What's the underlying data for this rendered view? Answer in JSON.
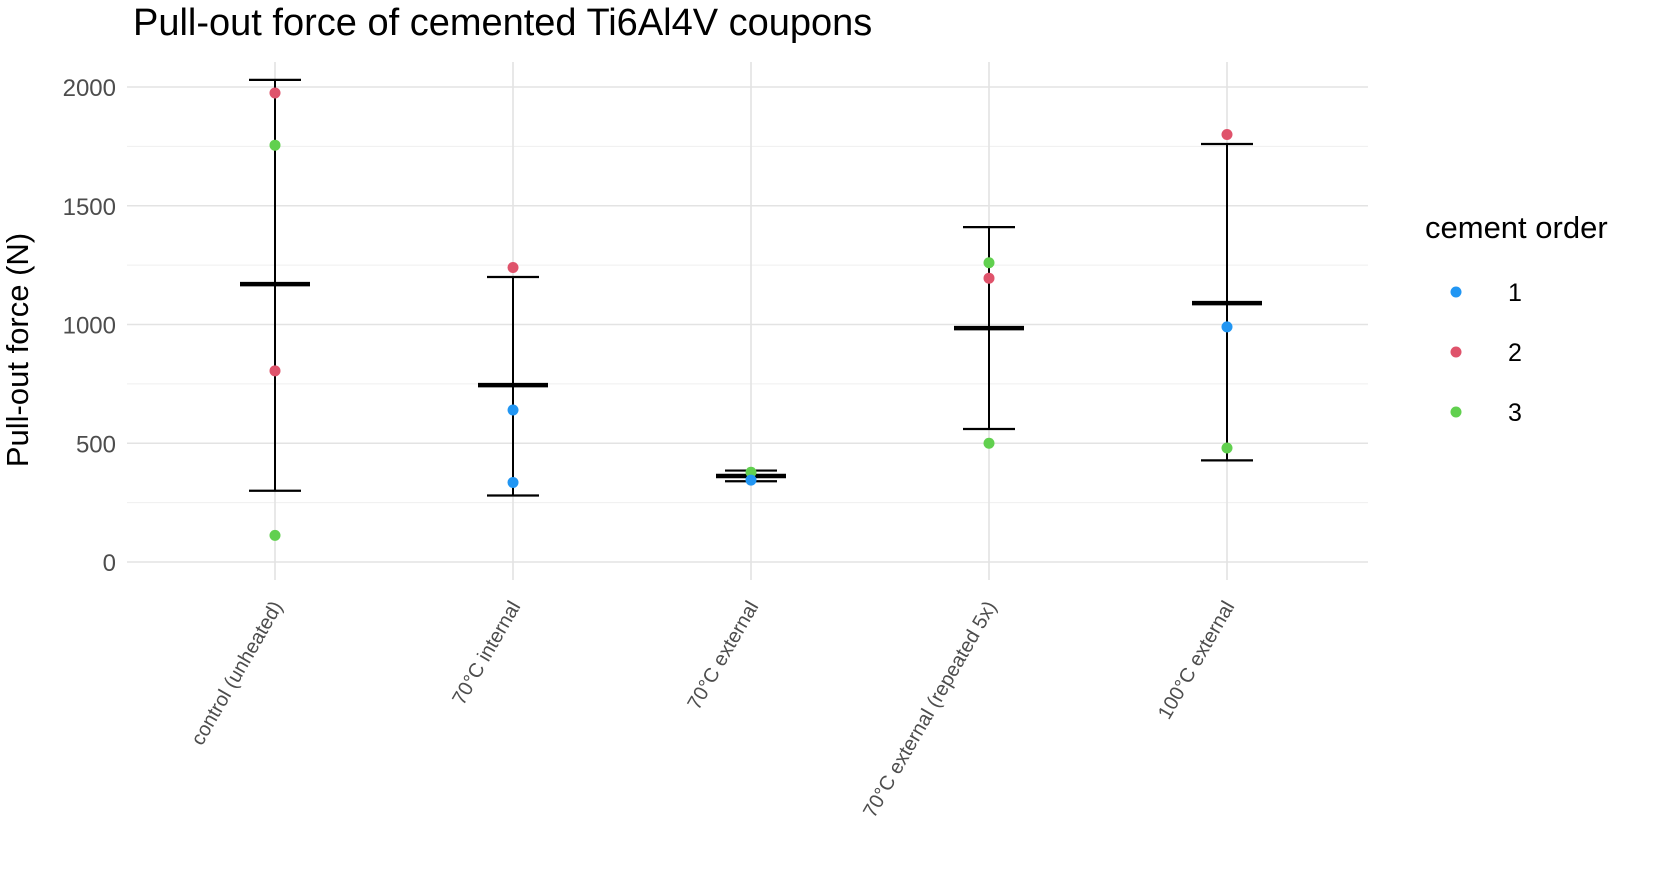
{
  "chart_data": {
    "type": "scatter",
    "title": "Pull-out force of cemented Ti6Al4V coupons",
    "xlabel": "",
    "ylabel": "Pull-out force (N)",
    "ylim": [
      -120,
      2100
    ],
    "yticks": [
      0,
      500,
      1000,
      1500,
      2000
    ],
    "categories": [
      "control (unheated)",
      "70°C internal",
      "70°C external",
      "70°C external (repeated 5x)",
      "100°C external"
    ],
    "summary": [
      {
        "category": "control (unheated)",
        "mean": 1170,
        "lower": 300,
        "upper": 2030
      },
      {
        "category": "70°C internal",
        "mean": 745,
        "lower": 280,
        "upper": 1200
      },
      {
        "category": "70°C external",
        "mean": 362,
        "lower": 340,
        "upper": 385
      },
      {
        "category": "70°C external (repeated 5x)",
        "mean": 985,
        "lower": 560,
        "upper": 1410
      },
      {
        "category": "100°C external",
        "mean": 1090,
        "lower": 428,
        "upper": 1760
      }
    ],
    "points": [
      {
        "category": "control (unheated)",
        "order": "2",
        "value": 1975
      },
      {
        "category": "control (unheated)",
        "order": "3",
        "value": 1755
      },
      {
        "category": "control (unheated)",
        "order": "2",
        "value": 805
      },
      {
        "category": "control (unheated)",
        "order": "3",
        "value": 112
      },
      {
        "category": "70°C internal",
        "order": "2",
        "value": 1240
      },
      {
        "category": "70°C internal",
        "order": "1",
        "value": 640
      },
      {
        "category": "70°C internal",
        "order": "1",
        "value": 335
      },
      {
        "category": "70°C external",
        "order": "3",
        "value": 378
      },
      {
        "category": "70°C external",
        "order": "1",
        "value": 345
      },
      {
        "category": "70°C external (repeated 5x)",
        "order": "3",
        "value": 1260
      },
      {
        "category": "70°C external (repeated 5x)",
        "order": "2",
        "value": 1195
      },
      {
        "category": "70°C external (repeated 5x)",
        "order": "3",
        "value": 500
      },
      {
        "category": "100°C external",
        "order": "2",
        "value": 1800
      },
      {
        "category": "100°C external",
        "order": "1",
        "value": 990
      },
      {
        "category": "100°C external",
        "order": "3",
        "value": 480
      }
    ],
    "legend": {
      "title": "cement order",
      "position": "right",
      "entries": [
        {
          "label": "1",
          "color": "#2196F3"
        },
        {
          "label": "2",
          "color": "#DF536B"
        },
        {
          "label": "3",
          "color": "#61D04F"
        }
      ]
    },
    "grid": true
  }
}
